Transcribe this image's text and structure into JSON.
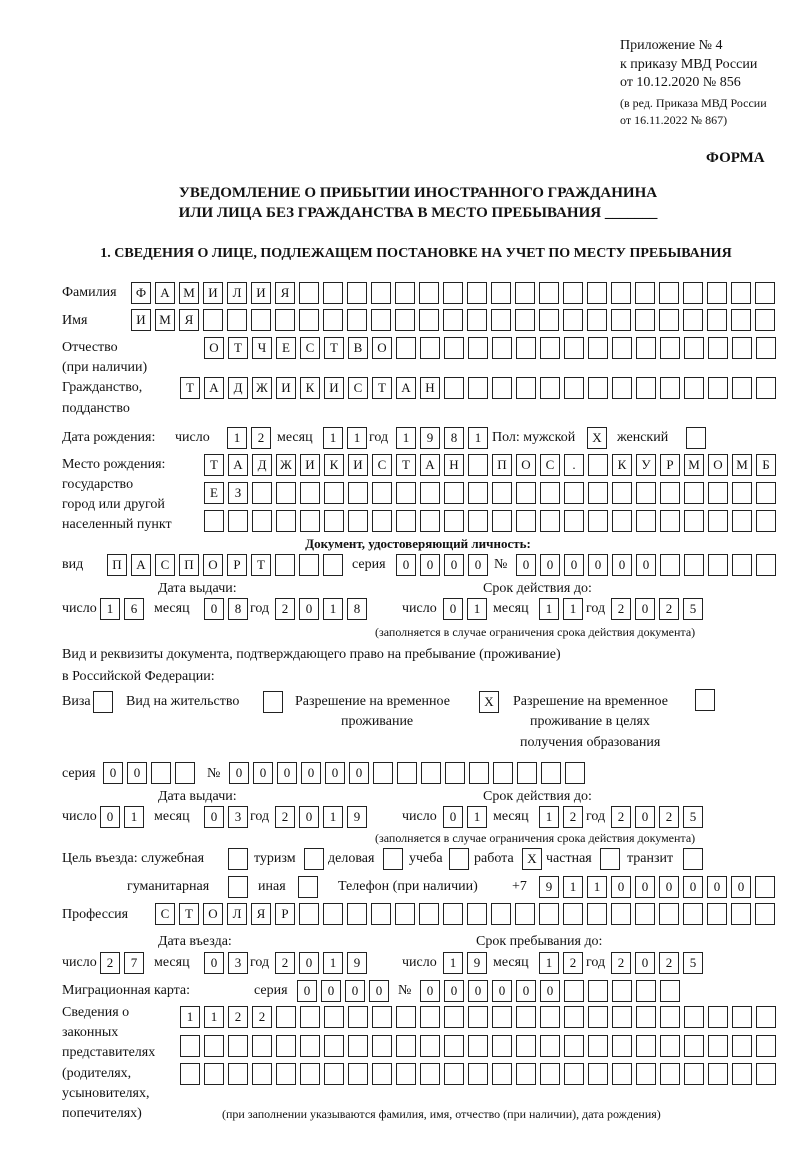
{
  "header": {
    "appendix": "Приложение № 4",
    "order": "к приказу МВД России",
    "order_date": "от 10.12.2020 № 856",
    "revision1": "(в ред. Приказа МВД России",
    "revision2": "от 16.11.2022 № 867)",
    "form_label": "ФОРМА",
    "title1": "УВЕДОМЛЕНИЕ О ПРИБЫТИИ ИНОСТРАННОГО ГРАЖДАНИНА",
    "title2": "ИЛИ ЛИЦА БЕЗ ГРАЖДАНСТВА В МЕСТО ПРЕБЫВАНИЯ _______",
    "section1": "1. СВЕДЕНИЯ О ЛИЦЕ, ПОДЛЕЖАЩЕМ ПОСТАНОВКЕ НА УЧЕТ ПО МЕСТУ ПРЕБЫВАНИЯ"
  },
  "labels": {
    "surname": "Фамилия",
    "name": "Имя",
    "patronymic": "Отчество",
    "patronymic2": "(при наличии)",
    "citizenship": "Гражданство,",
    "citizenship2": "подданство",
    "birth_date": "Дата рождения:",
    "day": "число",
    "month": "месяц",
    "year": "год",
    "sex": "Пол: мужской",
    "female": "женский",
    "birthplace1": "Место рождения:",
    "birthplace2": "государство",
    "birthplace3": "город или другой",
    "birthplace4": "населенный пункт",
    "id_doc": "Документ, удостоверяющий личность:",
    "kind": "вид",
    "series": "серия",
    "number": "№",
    "issue_date": "Дата выдачи:",
    "valid_until": "Срок действия до:",
    "valid_note": "(заполняется в случае ограничения срока действия документа)",
    "right_doc1": "Вид и реквизиты документа, подтверждающего право на пребывание (проживание)",
    "right_doc2": "в Российской Федерации:",
    "visa": "Виза",
    "residence": "Вид на жительство",
    "temp1": "Разрешение на временное",
    "temp2": "проживание",
    "edu1": "Разрешение на временное",
    "edu2": "проживание в целях",
    "edu3": "получения образования",
    "purpose": "Цель въезда: служебная",
    "tourism": "туризм",
    "business": "деловая",
    "study": "учеба",
    "work": "работа",
    "private": "частная",
    "transit": "транзит",
    "humanitarian": "гуманитарная",
    "other": "иная",
    "phone": "Телефон (при наличии)",
    "phone_prefix": "+7",
    "profession": "Профессия",
    "entry_date": "Дата въезда:",
    "stay_until": "Срок пребывания до:",
    "migration_card": "Миграционная карта:",
    "reps1": "Сведения о",
    "reps2": "законных",
    "reps3": "представителях",
    "reps4": "(родителях,",
    "reps5": "усыновителях,",
    "reps6": "попечителях)",
    "reps_note": "(при заполнении указываются фамилия, имя, отчество (при наличии), дата рождения)"
  },
  "person": {
    "surname": "ФАМИЛИЯ",
    "name": "ИМЯ",
    "patronymic": "ОТЧЕСТВО",
    "citizenship": "ТАДЖИКИСТАН",
    "birth_day": "12",
    "birth_month": "11",
    "birth_year": "1981",
    "male": "X",
    "female": "",
    "birthplace1": "ТАДЖИКИСТАН ПОС. КУРМОМБ",
    "birthplace2": "ЕЗ",
    "birthplace3": ""
  },
  "id_document": {
    "kind": "ПАСПОРТ",
    "series": "0000",
    "number": "000000",
    "issue_day": "16",
    "issue_month": "08",
    "issue_year": "2018",
    "valid_day": "01",
    "valid_month": "11",
    "valid_year": "2025"
  },
  "right_document": {
    "visa": "",
    "residence": "",
    "temp_residence": "X",
    "temp_residence_edu": "",
    "series": "00",
    "number": "000000",
    "issue_day": "01",
    "issue_month": "03",
    "issue_year": "2019",
    "valid_day": "01",
    "valid_month": "12",
    "valid_year": "2025"
  },
  "purpose": {
    "official": "",
    "tourism": "",
    "business": "",
    "study": "",
    "work": "X",
    "private": "",
    "transit": "",
    "humanitarian": "",
    "other": ""
  },
  "phone": "911000000",
  "profession": "СТОЛЯР",
  "entry": {
    "day": "27",
    "month": "03",
    "year": "2019",
    "stay_day": "19",
    "stay_month": "12",
    "stay_year": "2025"
  },
  "migration_card": {
    "series": "0000",
    "number": "000000"
  },
  "representatives": {
    "line1": "1122",
    "line2": "",
    "line3": ""
  }
}
